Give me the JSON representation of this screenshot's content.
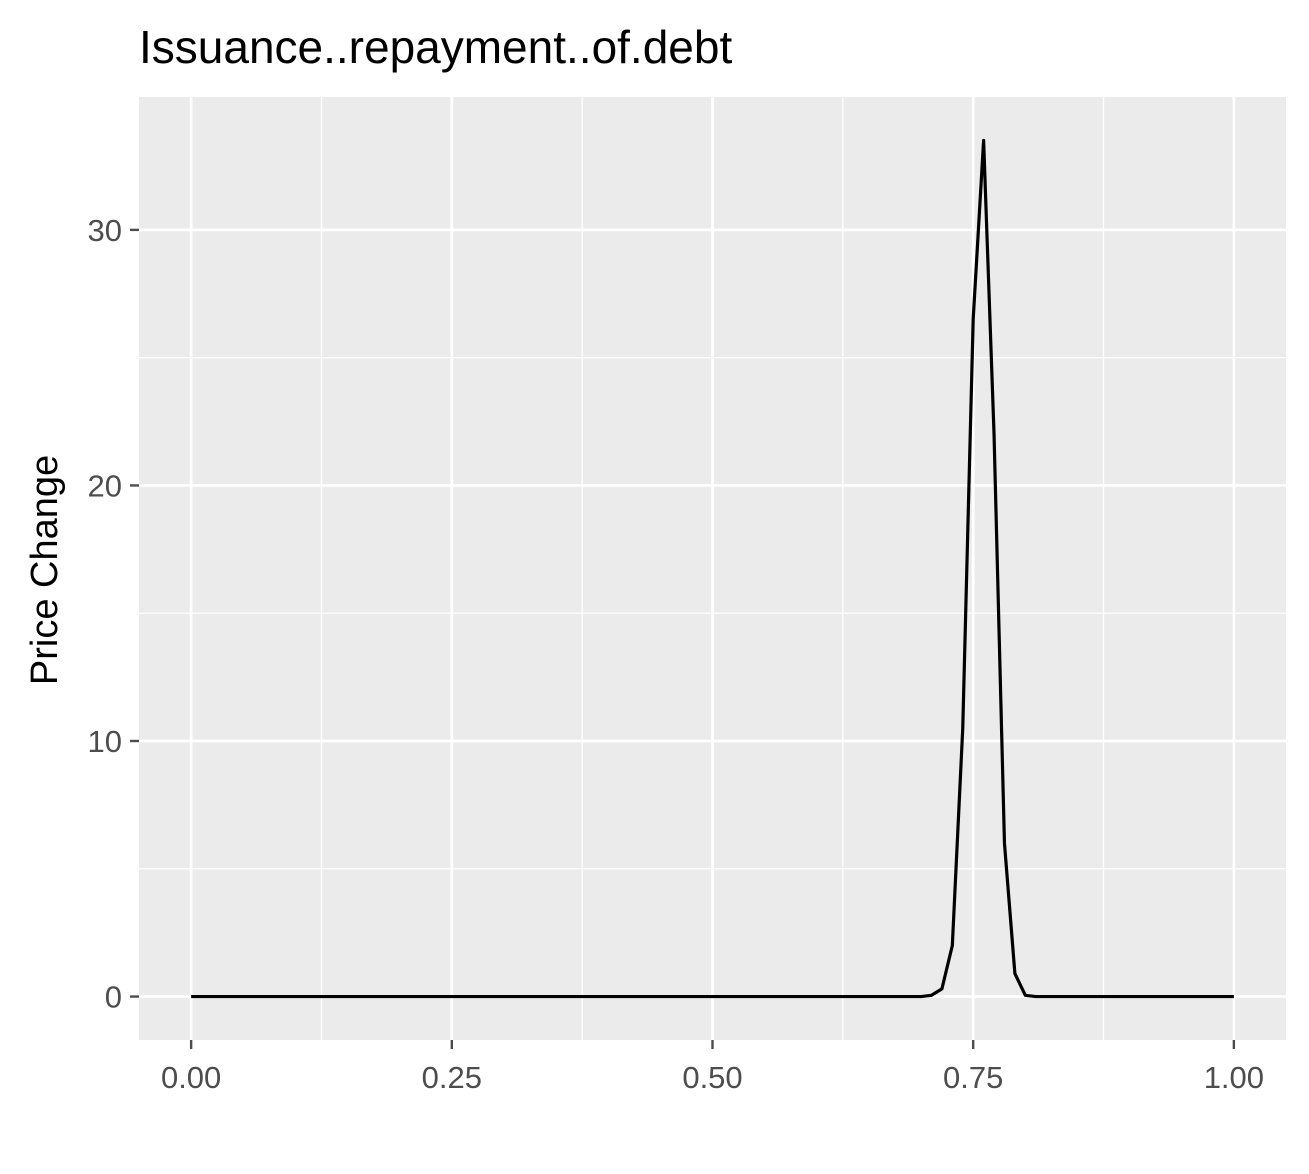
{
  "chart_data": {
    "type": "line",
    "title": "Issuance..repayment..of.debt",
    "xlabel": "",
    "ylabel": "Price Change",
    "xlim": [
      -0.05,
      1.05
    ],
    "ylim": [
      -1.7,
      35.2
    ],
    "x_ticks": [
      0.0,
      0.25,
      0.5,
      0.75,
      1.0
    ],
    "x_tick_labels": [
      "0.00",
      "0.25",
      "0.50",
      "0.75",
      "1.00"
    ],
    "y_ticks": [
      0,
      10,
      20,
      30
    ],
    "y_tick_labels": [
      "0",
      "10",
      "20",
      "30"
    ],
    "grid": true,
    "legend": "none",
    "colors": {
      "panel": "#ebebeb",
      "grid": "#ffffff",
      "line": "#000000",
      "ticks": "#4d4d4d"
    },
    "series": [
      {
        "x": [
          0.0,
          0.05,
          0.1,
          0.15,
          0.2,
          0.25,
          0.3,
          0.35,
          0.4,
          0.45,
          0.5,
          0.55,
          0.6,
          0.65,
          0.7,
          0.71,
          0.72,
          0.73,
          0.74,
          0.75,
          0.76,
          0.77,
          0.78,
          0.79,
          0.8,
          0.81,
          0.85,
          0.9,
          0.95,
          1.0
        ],
        "y": [
          0,
          0,
          0,
          0,
          0,
          0,
          0,
          0,
          0,
          0,
          0,
          0,
          0,
          0,
          0,
          0.05,
          0.3,
          2.0,
          10.5,
          26.5,
          33.5,
          22.0,
          6.0,
          0.9,
          0.05,
          0,
          0,
          0,
          0,
          0
        ]
      }
    ]
  }
}
